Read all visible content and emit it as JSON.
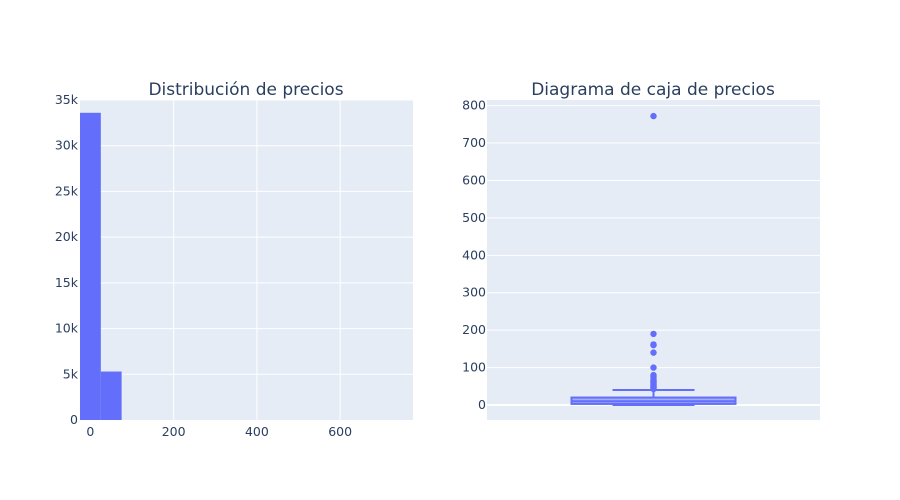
{
  "colors": {
    "plot_bg": "#e5ecf6",
    "grid": "#ffffff",
    "mark": "#636efa",
    "text": "#2a3f5f"
  },
  "chart_data": [
    {
      "type": "bar",
      "title": "Distribución de precios",
      "xlabel": "",
      "ylabel": "",
      "bins": [
        {
          "start": -25,
          "end": 25,
          "count": 33600
        },
        {
          "start": 25,
          "end": 75,
          "count": 5300
        }
      ],
      "xlim": [
        -25,
        775
      ],
      "ylim": [
        0,
        35000
      ],
      "xticks": [
        0,
        200,
        400,
        600
      ],
      "xtick_labels": [
        "0",
        "200",
        "400",
        "600"
      ],
      "yticks": [
        0,
        5000,
        10000,
        15000,
        20000,
        25000,
        30000,
        35000
      ],
      "ytick_labels": [
        "0",
        "5k",
        "10k",
        "15k",
        "20k",
        "25k",
        "30k",
        "35k"
      ],
      "grid": true
    },
    {
      "type": "box",
      "title": "Diagrama de caja de precios",
      "xlabel": "",
      "ylabel": "",
      "box": {
        "min": 0,
        "q1": 3,
        "median": 10,
        "q3": 20,
        "max": 40
      },
      "outliers": [
        43,
        46,
        48,
        50,
        52,
        55,
        58,
        60,
        63,
        66,
        70,
        75,
        80,
        100,
        140,
        160,
        162,
        190,
        772
      ],
      "ylim": [
        -40,
        815
      ],
      "yticks": [
        0,
        100,
        200,
        300,
        400,
        500,
        600,
        700,
        800
      ],
      "ytick_labels": [
        "0",
        "100",
        "200",
        "300",
        "400",
        "500",
        "600",
        "700",
        "800"
      ],
      "grid": true
    }
  ]
}
